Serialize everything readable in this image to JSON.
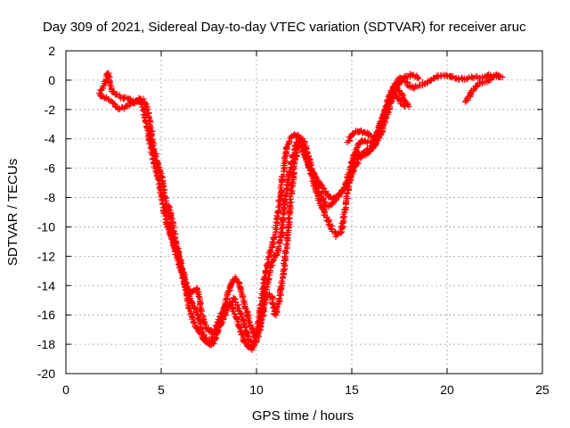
{
  "chart_data": {
    "type": "scatter",
    "title": "Day 309 of 2021, Sidereal Day-to-day VTEC variation (SDTVAR) for receiver aruc",
    "xlabel": "GPS time / hours",
    "ylabel": "SDTVAR / TECUs",
    "xlim": [
      0,
      25
    ],
    "ylim": [
      -20,
      2
    ],
    "xticks": [
      0,
      5,
      10,
      15,
      20,
      25
    ],
    "yticks": [
      -20,
      -18,
      -16,
      -14,
      -12,
      -10,
      -8,
      -6,
      -4,
      -2,
      0,
      2
    ],
    "grid": true,
    "marker": "plus",
    "color": "#ff0000",
    "traces": [
      {
        "x": [
          1.8,
          2.0,
          2.2,
          2.4,
          2.6,
          2.8,
          3.0,
          3.3,
          3.6,
          3.9,
          4.0,
          4.2,
          4.4,
          4.6,
          4.8,
          5.0,
          5.2,
          5.4,
          5.6,
          5.8,
          6.0,
          6.2,
          6.4,
          6.6,
          6.8,
          7.0,
          7.2,
          7.4,
          7.6,
          7.8,
          8.0,
          8.2,
          8.4,
          8.6,
          8.8,
          9.0,
          9.2,
          9.4,
          9.6,
          9.8,
          10.0,
          10.2,
          10.4,
          10.6,
          10.8,
          11.0,
          11.2,
          11.4,
          11.6,
          11.8,
          12.0,
          12.2,
          12.4,
          12.6,
          12.8,
          13.0,
          13.2,
          13.4,
          13.6,
          13.8,
          14.0,
          14.2,
          14.4,
          14.6,
          14.8,
          15.0,
          15.2,
          15.4,
          15.6,
          15.8,
          16.0,
          16.2,
          16.4,
          16.6,
          16.8,
          17.0,
          17.2,
          17.4,
          17.6,
          17.8,
          18.0,
          18.3,
          18.6,
          19.0,
          19.4,
          19.8,
          20.2,
          20.6,
          21.0,
          21.4,
          21.8,
          22.2,
          22.6,
          22.9
        ],
        "y": [
          -0.8,
          -0.3,
          0.5,
          -0.8,
          -0.9,
          -1.1,
          -1.2,
          -1.3,
          -1.5,
          -1.4,
          -1.3,
          -1.7,
          -2.8,
          -4.6,
          -5.6,
          -6.5,
          -8.0,
          -9.6,
          -11.0,
          -11.9,
          -12.8,
          -13.8,
          -15.0,
          -16.2,
          -16.8,
          -17.2,
          -17.6,
          -17.9,
          -17.8,
          -17.2,
          -16.4,
          -15.8,
          -15.4,
          -15.3,
          -15.7,
          -16.4,
          -17.2,
          -17.9,
          -18.2,
          -18.3,
          -17.4,
          -15.8,
          -13.8,
          -12.3,
          -11.4,
          -10.3,
          -8.5,
          -6.2,
          -4.6,
          -3.9,
          -3.7,
          -3.8,
          -4.6,
          -5.4,
          -6.0,
          -6.4,
          -6.8,
          -7.2,
          -7.6,
          -7.9,
          -8.1,
          -8.0,
          -7.8,
          -7.3,
          -6.6,
          -5.7,
          -5.2,
          -5.0,
          -5.1,
          -5.0,
          -4.8,
          -4.4,
          -3.7,
          -2.7,
          -1.8,
          -1.0,
          -0.4,
          0.0,
          0.2,
          0.0,
          -0.4,
          -0.5,
          -0.3,
          -0.1,
          0.2,
          0.3,
          0.3,
          0.1,
          0.1,
          0.2,
          0.2,
          0.3,
          0.3,
          0.2
        ]
      },
      {
        "x": [
          1.8,
          2.1,
          2.5,
          2.8,
          3.1,
          3.5,
          3.8,
          4.0,
          4.3,
          4.6,
          4.9,
          5.1,
          5.3,
          5.5,
          5.7,
          5.9,
          6.1,
          6.3,
          6.5,
          6.7,
          6.9,
          7.1,
          7.3,
          7.5,
          7.7,
          7.9,
          8.1,
          8.3,
          8.5,
          8.7,
          8.9,
          9.1,
          9.3,
          9.5,
          9.7,
          9.9,
          10.1,
          10.3,
          10.5,
          10.7,
          10.9,
          11.1,
          11.3,
          11.5,
          11.7,
          11.9,
          12.1,
          12.3,
          12.5,
          12.7,
          12.9,
          13.1,
          13.3,
          13.5,
          13.7,
          13.9,
          14.1,
          14.3,
          14.5,
          14.7,
          14.9,
          15.1,
          15.3,
          15.5,
          15.7,
          15.9,
          16.1,
          16.3,
          16.5,
          16.7,
          16.9,
          17.1,
          17.3,
          17.5,
          17.7,
          17.9,
          18.2,
          18.5
        ],
        "y": [
          -1.0,
          -1.2,
          -1.6,
          -2.0,
          -1.8,
          -1.5,
          -1.3,
          -1.6,
          -3.5,
          -5.5,
          -7.0,
          -8.6,
          -9.8,
          -10.6,
          -11.2,
          -11.9,
          -12.9,
          -14.0,
          -14.6,
          -14.3,
          -14.2,
          -15.8,
          -16.7,
          -17.0,
          -17.2,
          -17.0,
          -16.5,
          -15.6,
          -14.6,
          -13.8,
          -13.5,
          -13.9,
          -14.8,
          -15.8,
          -16.8,
          -17.5,
          -17.0,
          -15.6,
          -14.3,
          -13.0,
          -12.1,
          -11.8,
          -10.5,
          -8.3,
          -6.5,
          -5.3,
          -4.3,
          -3.9,
          -4.2,
          -5.1,
          -6.0,
          -6.9,
          -7.6,
          -8.2,
          -8.6,
          -8.5,
          -8.2,
          -7.9,
          -7.6,
          -7.2,
          -6.8,
          -6.1,
          -5.6,
          -5.2,
          -4.9,
          -4.7,
          -4.5,
          -4.2,
          -3.7,
          -3.0,
          -2.2,
          -1.3,
          -0.6,
          -0.2,
          0.1,
          0.3,
          0.4,
          0.1
        ]
      },
      {
        "x": [
          5.4,
          5.6,
          5.8,
          6.0,
          6.2,
          6.4,
          6.6,
          6.8,
          7.0,
          7.2,
          7.4,
          7.6,
          7.8,
          8.0,
          8.2,
          8.4,
          8.6,
          8.8,
          9.0,
          9.2,
          9.4,
          9.6,
          9.8,
          10.0,
          10.2,
          10.4,
          10.6,
          10.8,
          11.0,
          11.2,
          11.4,
          11.6,
          11.8,
          12.0,
          12.2,
          12.4,
          12.6,
          12.8,
          13.0,
          13.2,
          13.4,
          13.6,
          13.8,
          14.0,
          14.2,
          14.4,
          14.6,
          14.8,
          15.0,
          15.2,
          15.4,
          15.6,
          15.8,
          16.0,
          16.2,
          16.4,
          16.6,
          16.8,
          17.0,
          17.2,
          17.4,
          17.6,
          17.8
        ],
        "y": [
          -8.5,
          -9.8,
          -11.2,
          -12.4,
          -13.4,
          -14.4,
          -15.1,
          -15.6,
          -16.4,
          -17.2,
          -17.8,
          -18.1,
          -17.8,
          -17.0,
          -16.4,
          -15.8,
          -15.2,
          -14.9,
          -15.4,
          -16.0,
          -16.8,
          -17.6,
          -18.1,
          -17.8,
          -16.8,
          -15.4,
          -14.6,
          -14.8,
          -16.0,
          -15.0,
          -13.4,
          -11.0,
          -8.0,
          -5.6,
          -4.4,
          -4.5,
          -5.2,
          -6.1,
          -7.0,
          -7.8,
          -8.6,
          -9.2,
          -9.7,
          -10.2,
          -10.6,
          -10.4,
          -9.3,
          -7.4,
          -5.7,
          -4.8,
          -4.3,
          -4.1,
          -4.2,
          -4.2,
          -3.9,
          -3.3,
          -2.6,
          -1.9,
          -1.3,
          -0.9,
          -1.2,
          -1.6,
          -1.8
        ]
      },
      {
        "x": [
          17.2,
          17.4,
          17.6,
          17.8,
          18.0
        ],
        "y": [
          -0.6,
          -0.6,
          -0.9,
          -1.5,
          -1.8
        ]
      },
      {
        "x": [
          14.8,
          15.0,
          15.2,
          15.4,
          15.6,
          15.8,
          16.0
        ],
        "y": [
          -4.2,
          -3.7,
          -3.5,
          -3.5,
          -3.6,
          -3.6,
          -3.8
        ]
      },
      {
        "x": [
          21.0,
          21.2,
          21.4,
          21.6,
          21.8,
          22.0,
          22.2,
          22.4,
          22.6,
          22.8
        ],
        "y": [
          -1.5,
          -1.0,
          -0.6,
          -0.3,
          -0.2,
          -0.1,
          0.0,
          0.2,
          0.3,
          0.2
        ]
      }
    ]
  }
}
